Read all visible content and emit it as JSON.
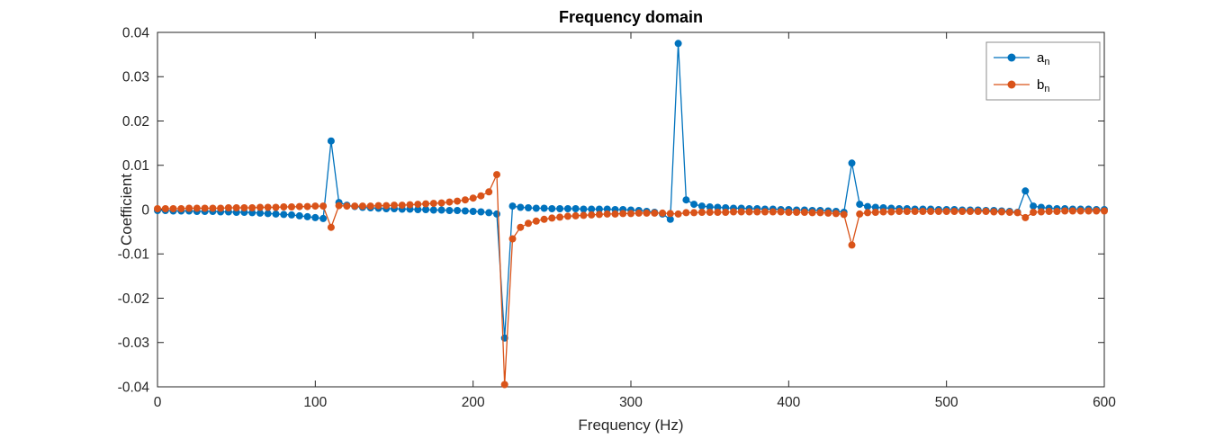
{
  "chart_data": {
    "type": "line",
    "title": "Frequency domain",
    "xlabel": "Frequency (Hz)",
    "ylabel": "Coefficient",
    "xlim": [
      0,
      600
    ],
    "ylim": [
      -0.04,
      0.04
    ],
    "grid": false,
    "axis_color": "#262626",
    "xticks": {
      "values": [
        0,
        100,
        200,
        300,
        400,
        500,
        600
      ],
      "labels": [
        "0",
        "100",
        "200",
        "300",
        "400",
        "500",
        "600"
      ]
    },
    "yticks": {
      "values": [
        -0.04,
        -0.03,
        -0.02,
        -0.01,
        0,
        0.01,
        0.02,
        0.03,
        0.04
      ],
      "labels": [
        "-0.04",
        "-0.03",
        "-0.02",
        "-0.01",
        "0",
        "0.01",
        "0.02",
        "0.03",
        "0.04"
      ]
    },
    "legend": {
      "position": "northeast",
      "edge_color": "#8c8c8c",
      "entries": [
        {
          "label_main": "a",
          "label_sub": "n",
          "color": "#0072BD"
        },
        {
          "label_main": "b",
          "label_sub": "n",
          "color": "#D95319"
        }
      ]
    },
    "x": [
      0,
      5,
      10,
      15,
      20,
      25,
      30,
      35,
      40,
      45,
      50,
      55,
      60,
      65,
      70,
      75,
      80,
      85,
      90,
      95,
      100,
      105,
      110,
      115,
      120,
      125,
      130,
      135,
      140,
      145,
      150,
      155,
      160,
      165,
      170,
      175,
      180,
      185,
      190,
      195,
      200,
      205,
      210,
      215,
      220,
      225,
      230,
      235,
      240,
      245,
      250,
      255,
      260,
      265,
      270,
      275,
      280,
      285,
      290,
      295,
      300,
      305,
      310,
      315,
      320,
      325,
      330,
      335,
      340,
      345,
      350,
      355,
      360,
      365,
      370,
      375,
      380,
      385,
      390,
      395,
      400,
      405,
      410,
      415,
      420,
      425,
      430,
      435,
      440,
      445,
      450,
      455,
      460,
      465,
      470,
      475,
      480,
      485,
      490,
      495,
      500,
      505,
      510,
      515,
      520,
      525,
      530,
      535,
      540,
      545,
      550,
      555,
      560,
      565,
      570,
      575,
      580,
      585,
      590,
      595,
      600
    ],
    "series": [
      {
        "name": "a_n",
        "color": "#0072BD",
        "values": [
          -0.0002,
          -0.0002,
          -0.0003,
          -0.0003,
          -0.0003,
          -0.0004,
          -0.0004,
          -0.0004,
          -0.0005,
          -0.0005,
          -0.0006,
          -0.0006,
          -0.0007,
          -0.0008,
          -0.0009,
          -0.001,
          -0.0011,
          -0.0012,
          -0.0014,
          -0.0016,
          -0.0018,
          -0.002,
          0.0155,
          0.0016,
          0.001,
          0.0007,
          0.0005,
          0.0004,
          0.0003,
          0.0002,
          0.0002,
          0.0001,
          0.0001,
          0.0,
          0.0,
          -0.0001,
          -0.0001,
          -0.0002,
          -0.0002,
          -0.0003,
          -0.0004,
          -0.0005,
          -0.0007,
          -0.001,
          -0.029,
          0.0008,
          0.0005,
          0.0004,
          0.0003,
          0.0003,
          0.0002,
          0.0002,
          0.0002,
          0.0002,
          0.0001,
          0.0001,
          0.0001,
          0.0001,
          0.0,
          0.0,
          -0.0001,
          -0.0002,
          -0.0004,
          -0.0006,
          -0.001,
          -0.0022,
          0.0375,
          0.0022,
          0.0012,
          0.0008,
          0.0006,
          0.0005,
          0.0004,
          0.0003,
          0.0003,
          0.0002,
          0.0002,
          0.0001,
          0.0001,
          0.0,
          0.0,
          -0.0001,
          -0.0001,
          -0.0002,
          -0.0002,
          -0.0003,
          -0.0004,
          -0.0006,
          0.0105,
          0.0012,
          0.0007,
          0.0005,
          0.0004,
          0.0003,
          0.0002,
          0.0002,
          0.0001,
          0.0001,
          0.0001,
          0.0,
          0.0,
          0.0,
          -0.0001,
          -0.0001,
          -0.0001,
          -0.0002,
          -0.0002,
          -0.0003,
          -0.0004,
          -0.0006,
          0.0042,
          0.0008,
          0.0005,
          0.0003,
          0.0002,
          0.0002,
          0.0001,
          0.0001,
          0.0001,
          0.0,
          0.0
        ]
      },
      {
        "name": "b_n",
        "color": "#D95319",
        "values": [
          0.0002,
          0.0002,
          0.0002,
          0.0002,
          0.0003,
          0.0003,
          0.0003,
          0.0003,
          0.0003,
          0.0004,
          0.0004,
          0.0004,
          0.0004,
          0.0005,
          0.0005,
          0.0005,
          0.0006,
          0.0006,
          0.0007,
          0.0007,
          0.0008,
          0.0008,
          -0.004,
          0.0009,
          0.0008,
          0.0008,
          0.0008,
          0.0008,
          0.0009,
          0.0009,
          0.001,
          0.001,
          0.0011,
          0.0012,
          0.0013,
          0.0014,
          0.0015,
          0.0017,
          0.0019,
          0.0022,
          0.0026,
          0.0031,
          0.004,
          0.0079,
          -0.0395,
          -0.0066,
          -0.004,
          -0.0031,
          -0.0026,
          -0.0022,
          -0.0019,
          -0.0017,
          -0.0015,
          -0.0014,
          -0.0013,
          -0.0012,
          -0.0011,
          -0.001,
          -0.001,
          -0.0009,
          -0.0009,
          -0.0008,
          -0.0008,
          -0.0008,
          -0.0008,
          -0.0009,
          -0.001,
          -0.0007,
          -0.0007,
          -0.0006,
          -0.0006,
          -0.0006,
          -0.0006,
          -0.0005,
          -0.0005,
          -0.0005,
          -0.0005,
          -0.0005,
          -0.0005,
          -0.0005,
          -0.0006,
          -0.0006,
          -0.0006,
          -0.0007,
          -0.0007,
          -0.0008,
          -0.0009,
          -0.0011,
          -0.008,
          -0.001,
          -0.0007,
          -0.0006,
          -0.0005,
          -0.0005,
          -0.0004,
          -0.0004,
          -0.0004,
          -0.0004,
          -0.0004,
          -0.0004,
          -0.0004,
          -0.0004,
          -0.0004,
          -0.0004,
          -0.0004,
          -0.0004,
          -0.0005,
          -0.0005,
          -0.0006,
          -0.0007,
          -0.0018,
          -0.0006,
          -0.0005,
          -0.0004,
          -0.0004,
          -0.0003,
          -0.0003,
          -0.0003,
          -0.0003,
          -0.0003,
          -0.0003
        ]
      }
    ]
  }
}
